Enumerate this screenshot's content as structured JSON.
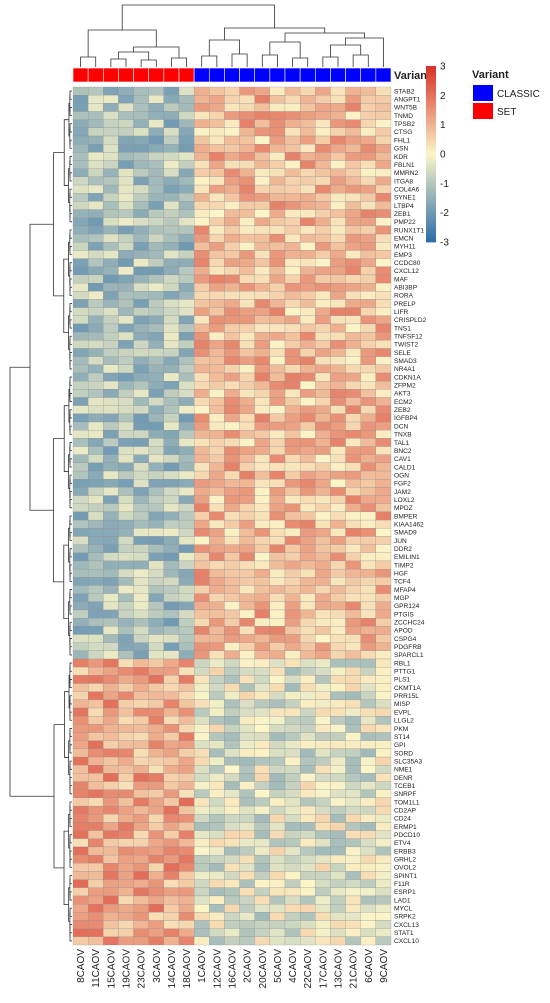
{
  "chart_data": {
    "type": "heatmap",
    "title": "",
    "annotation_track_label": "Variant",
    "legend": {
      "title": "Variant",
      "placement": "top-right",
      "entries": [
        {
          "label": "CLASSIC",
          "color": "#0000ff"
        },
        {
          "label": "SET",
          "color": "#ff0000"
        }
      ]
    },
    "color_scale": {
      "min": -3,
      "max": 3,
      "ticks": [
        3,
        2,
        1,
        0,
        -1,
        -2,
        -3
      ],
      "colors": {
        "low": "#2b6ca8",
        "mid": "#fbf5c8",
        "high": "#d73027"
      }
    },
    "samples": [
      "8CAOV",
      "11CAOV",
      "15CAOV",
      "19CAOV",
      "23CAOV",
      "3CAOV",
      "14CAOV",
      "18CAOV",
      "1CAOV",
      "12CAOV",
      "16CAOV",
      "2CAOV",
      "20CAOV",
      "5CAOV",
      "4CAOV",
      "22CAOV",
      "17CAOV",
      "13CAOV",
      "21CAOV",
      "6CAOV",
      "9CAOV"
    ],
    "sample_variant": [
      "SET",
      "SET",
      "SET",
      "SET",
      "SET",
      "SET",
      "SET",
      "SET",
      "CLASSIC",
      "CLASSIC",
      "CLASSIC",
      "CLASSIC",
      "CLASSIC",
      "CLASSIC",
      "CLASSIC",
      "CLASSIC",
      "CLASSIC",
      "CLASSIC",
      "CLASSIC",
      "CLASSIC",
      "CLASSIC"
    ],
    "genes": [
      "STAB2",
      "ANGPT1",
      "WNT5B",
      "TNMD",
      "TPSB2",
      "CTSG",
      "FHL1",
      "GSN",
      "KDR",
      "FBLN1",
      "MMRN2",
      "ITGA8",
      "COL4A6",
      "SYNE1",
      "LTBP4",
      "ZEB1",
      "PMP22",
      "RUNX1T1",
      "EMCN",
      "MYH11",
      "EMP3",
      "CCDC80",
      "CXCL12",
      "MAF",
      "ABI3BP",
      "RORA",
      "PRELP",
      "LIFR",
      "CRISPLD2",
      "TNS1",
      "TNFSF12",
      "TWIST2",
      "SELE",
      "SMAD3",
      "NR4A1",
      "CDKN1A",
      "ZFPM2",
      "AKT3",
      "ECM2",
      "ZEB2",
      "IGFBP4",
      "DCN",
      "TNXB",
      "TAL1",
      "BNC2",
      "CAV1",
      "CALD1",
      "OGN",
      "FGF2",
      "JAM2",
      "LOXL2",
      "MPDZ",
      "BMPER",
      "KIAA1462",
      "SMAD9",
      "JUN",
      "DDR2",
      "EMILIN1",
      "TIMP2",
      "HGF",
      "TCF4",
      "MFAP4",
      "MGP",
      "GPR124",
      "PTGIS",
      "ZCCHC24",
      "APOD",
      "CSPG4",
      "PDGFRB",
      "SPARCL1",
      "RBL1",
      "PTTG1",
      "PLS1",
      "CKMT1A",
      "PRR15L",
      "MISP",
      "EVPL",
      "LLGL2",
      "PKM",
      "ST14",
      "GPI",
      "SORD",
      "SLC35A3",
      "NME1",
      "DENR",
      "TCEB1",
      "SNRPF",
      "TOM1L1",
      "CD2AP",
      "CD24",
      "ERMP1",
      "PDCD10",
      "ETV4",
      "ERBB3",
      "GRHL2",
      "OVOL2",
      "SPINT1",
      "F11R",
      "ESRP1",
      "LAD1",
      "MYCL",
      "SRPK2",
      "CXCL13",
      "STAT1",
      "CXCL10"
    ],
    "value_rule": {
      "stromal_genes_count": 70,
      "stromal_genes": {
        "SET": -1.1,
        "CLASSIC": 0.9
      },
      "epithelial_genes": {
        "SET": 1.2,
        "CLASSIC": -0.4
      }
    }
  }
}
